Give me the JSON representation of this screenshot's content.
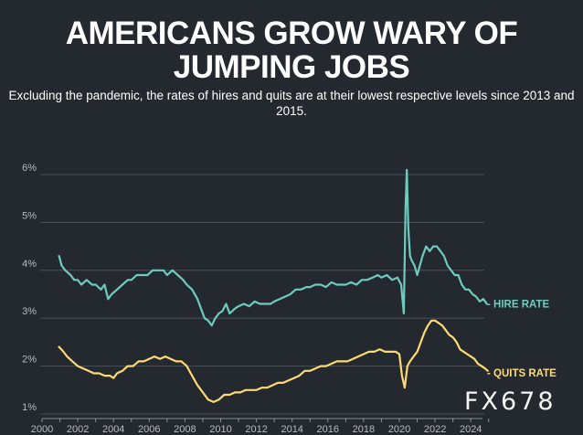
{
  "chart_data": {
    "type": "line",
    "title": "AMERICANS GROW WARY OF JUMPING JOBS",
    "subtitle": "Excluding the pandemic, the rates of hires and quits are at their lowest respective levels since 2013 and 2015.",
    "xlabel": "",
    "ylabel": "",
    "xlim": [
      2000,
      2025.2
    ],
    "ylim": [
      1,
      6.3
    ],
    "x_ticks": [
      "2000",
      "2002",
      "2004",
      "2006",
      "2008",
      "2010",
      "2012",
      "2014",
      "2016",
      "2018",
      "2020",
      "2022",
      "2024"
    ],
    "y_ticks": [
      "1%",
      "2%",
      "3%",
      "4%",
      "5%",
      "6%"
    ],
    "grid": "horizontal",
    "series": [
      {
        "name": "HIRE RATE",
        "label": "- HIRE RATE",
        "color": "#6ecbbd",
        "points": [
          [
            2000.95,
            4.3
          ],
          [
            2001.1,
            4.1
          ],
          [
            2001.3,
            4.0
          ],
          [
            2001.6,
            3.9
          ],
          [
            2001.8,
            3.8
          ],
          [
            2002.0,
            3.8
          ],
          [
            2002.2,
            3.7
          ],
          [
            2002.5,
            3.8
          ],
          [
            2002.8,
            3.7
          ],
          [
            2003.0,
            3.7
          ],
          [
            2003.3,
            3.6
          ],
          [
            2003.5,
            3.7
          ],
          [
            2003.7,
            3.4
          ],
          [
            2003.9,
            3.5
          ],
          [
            2004.2,
            3.6
          ],
          [
            2004.5,
            3.7
          ],
          [
            2004.8,
            3.8
          ],
          [
            2005.0,
            3.8
          ],
          [
            2005.3,
            3.9
          ],
          [
            2005.6,
            3.9
          ],
          [
            2005.9,
            3.9
          ],
          [
            2006.2,
            4.0
          ],
          [
            2006.5,
            4.0
          ],
          [
            2006.8,
            4.0
          ],
          [
            2007.0,
            3.9
          ],
          [
            2007.3,
            4.0
          ],
          [
            2007.6,
            3.9
          ],
          [
            2007.9,
            3.8
          ],
          [
            2008.1,
            3.7
          ],
          [
            2008.4,
            3.6
          ],
          [
            2008.7,
            3.4
          ],
          [
            2008.9,
            3.2
          ],
          [
            2009.1,
            3.0
          ],
          [
            2009.3,
            2.95
          ],
          [
            2009.5,
            2.85
          ],
          [
            2009.7,
            3.0
          ],
          [
            2009.9,
            3.1
          ],
          [
            2010.1,
            3.15
          ],
          [
            2010.3,
            3.3
          ],
          [
            2010.5,
            3.1
          ],
          [
            2010.8,
            3.2
          ],
          [
            2011.0,
            3.25
          ],
          [
            2011.3,
            3.3
          ],
          [
            2011.6,
            3.25
          ],
          [
            2011.9,
            3.35
          ],
          [
            2012.2,
            3.3
          ],
          [
            2012.5,
            3.3
          ],
          [
            2012.8,
            3.3
          ],
          [
            2013.0,
            3.35
          ],
          [
            2013.3,
            3.4
          ],
          [
            2013.6,
            3.45
          ],
          [
            2013.9,
            3.5
          ],
          [
            2014.2,
            3.6
          ],
          [
            2014.5,
            3.6
          ],
          [
            2014.8,
            3.65
          ],
          [
            2015.0,
            3.65
          ],
          [
            2015.3,
            3.7
          ],
          [
            2015.6,
            3.7
          ],
          [
            2015.9,
            3.65
          ],
          [
            2016.2,
            3.75
          ],
          [
            2016.5,
            3.7
          ],
          [
            2016.8,
            3.7
          ],
          [
            2017.0,
            3.7
          ],
          [
            2017.3,
            3.75
          ],
          [
            2017.6,
            3.7
          ],
          [
            2017.9,
            3.8
          ],
          [
            2018.2,
            3.8
          ],
          [
            2018.5,
            3.85
          ],
          [
            2018.8,
            3.9
          ],
          [
            2019.0,
            3.85
          ],
          [
            2019.3,
            3.9
          ],
          [
            2019.6,
            3.8
          ],
          [
            2019.9,
            3.85
          ],
          [
            2020.1,
            3.7
          ],
          [
            2020.25,
            3.1
          ],
          [
            2020.35,
            5.3
          ],
          [
            2020.42,
            6.1
          ],
          [
            2020.5,
            4.9
          ],
          [
            2020.6,
            4.3
          ],
          [
            2020.7,
            4.2
          ],
          [
            2020.85,
            4.1
          ],
          [
            2021.0,
            3.9
          ],
          [
            2021.15,
            4.1
          ],
          [
            2021.3,
            4.3
          ],
          [
            2021.5,
            4.5
          ],
          [
            2021.7,
            4.4
          ],
          [
            2021.9,
            4.5
          ],
          [
            2022.1,
            4.5
          ],
          [
            2022.3,
            4.4
          ],
          [
            2022.5,
            4.3
          ],
          [
            2022.7,
            4.1
          ],
          [
            2022.9,
            4.0
          ],
          [
            2023.1,
            3.9
          ],
          [
            2023.3,
            3.9
          ],
          [
            2023.5,
            3.7
          ],
          [
            2023.7,
            3.6
          ],
          [
            2023.9,
            3.6
          ],
          [
            2024.1,
            3.5
          ],
          [
            2024.3,
            3.45
          ],
          [
            2024.5,
            3.35
          ],
          [
            2024.7,
            3.4
          ],
          [
            2024.9,
            3.3
          ]
        ]
      },
      {
        "name": "QUITS RATE",
        "label": "- QUITS RATE",
        "color": "#fddb72",
        "points": [
          [
            2000.95,
            2.4
          ],
          [
            2001.2,
            2.3
          ],
          [
            2001.4,
            2.2
          ],
          [
            2001.7,
            2.1
          ],
          [
            2002.0,
            2.0
          ],
          [
            2002.3,
            1.95
          ],
          [
            2002.6,
            1.9
          ],
          [
            2002.9,
            1.85
          ],
          [
            2003.2,
            1.85
          ],
          [
            2003.5,
            1.8
          ],
          [
            2003.8,
            1.8
          ],
          [
            2004.0,
            1.75
          ],
          [
            2004.2,
            1.85
          ],
          [
            2004.5,
            1.9
          ],
          [
            2004.8,
            2.0
          ],
          [
            2005.1,
            2.0
          ],
          [
            2005.4,
            2.1
          ],
          [
            2005.7,
            2.1
          ],
          [
            2006.0,
            2.15
          ],
          [
            2006.3,
            2.2
          ],
          [
            2006.6,
            2.15
          ],
          [
            2006.9,
            2.2
          ],
          [
            2007.2,
            2.15
          ],
          [
            2007.5,
            2.1
          ],
          [
            2007.8,
            2.1
          ],
          [
            2008.1,
            2.0
          ],
          [
            2008.4,
            1.8
          ],
          [
            2008.7,
            1.6
          ],
          [
            2009.0,
            1.45
          ],
          [
            2009.3,
            1.3
          ],
          [
            2009.6,
            1.25
          ],
          [
            2009.9,
            1.3
          ],
          [
            2010.2,
            1.4
          ],
          [
            2010.5,
            1.4
          ],
          [
            2010.8,
            1.45
          ],
          [
            2011.1,
            1.45
          ],
          [
            2011.4,
            1.5
          ],
          [
            2011.7,
            1.5
          ],
          [
            2012.0,
            1.5
          ],
          [
            2012.3,
            1.55
          ],
          [
            2012.6,
            1.55
          ],
          [
            2012.9,
            1.6
          ],
          [
            2013.2,
            1.65
          ],
          [
            2013.5,
            1.65
          ],
          [
            2013.8,
            1.7
          ],
          [
            2014.1,
            1.75
          ],
          [
            2014.4,
            1.8
          ],
          [
            2014.7,
            1.9
          ],
          [
            2015.0,
            1.9
          ],
          [
            2015.3,
            1.95
          ],
          [
            2015.6,
            2.0
          ],
          [
            2015.9,
            2.0
          ],
          [
            2016.2,
            2.05
          ],
          [
            2016.5,
            2.1
          ],
          [
            2016.8,
            2.1
          ],
          [
            2017.1,
            2.1
          ],
          [
            2017.4,
            2.15
          ],
          [
            2017.7,
            2.2
          ],
          [
            2018.0,
            2.25
          ],
          [
            2018.3,
            2.3
          ],
          [
            2018.6,
            2.3
          ],
          [
            2018.9,
            2.35
          ],
          [
            2019.2,
            2.3
          ],
          [
            2019.5,
            2.3
          ],
          [
            2019.8,
            2.3
          ],
          [
            2020.0,
            2.25
          ],
          [
            2020.15,
            1.8
          ],
          [
            2020.3,
            1.55
          ],
          [
            2020.45,
            2.0
          ],
          [
            2020.6,
            2.1
          ],
          [
            2020.8,
            2.2
          ],
          [
            2021.0,
            2.3
          ],
          [
            2021.2,
            2.5
          ],
          [
            2021.4,
            2.7
          ],
          [
            2021.6,
            2.85
          ],
          [
            2021.8,
            2.95
          ],
          [
            2022.0,
            2.95
          ],
          [
            2022.2,
            2.9
          ],
          [
            2022.4,
            2.85
          ],
          [
            2022.6,
            2.75
          ],
          [
            2022.8,
            2.65
          ],
          [
            2023.0,
            2.6
          ],
          [
            2023.2,
            2.5
          ],
          [
            2023.4,
            2.35
          ],
          [
            2023.6,
            2.3
          ],
          [
            2023.8,
            2.25
          ],
          [
            2024.0,
            2.2
          ],
          [
            2024.2,
            2.15
          ],
          [
            2024.4,
            2.05
          ],
          [
            2024.6,
            2.0
          ],
          [
            2024.8,
            1.95
          ],
          [
            2024.95,
            1.9
          ]
        ]
      }
    ]
  },
  "watermark": "FX678"
}
